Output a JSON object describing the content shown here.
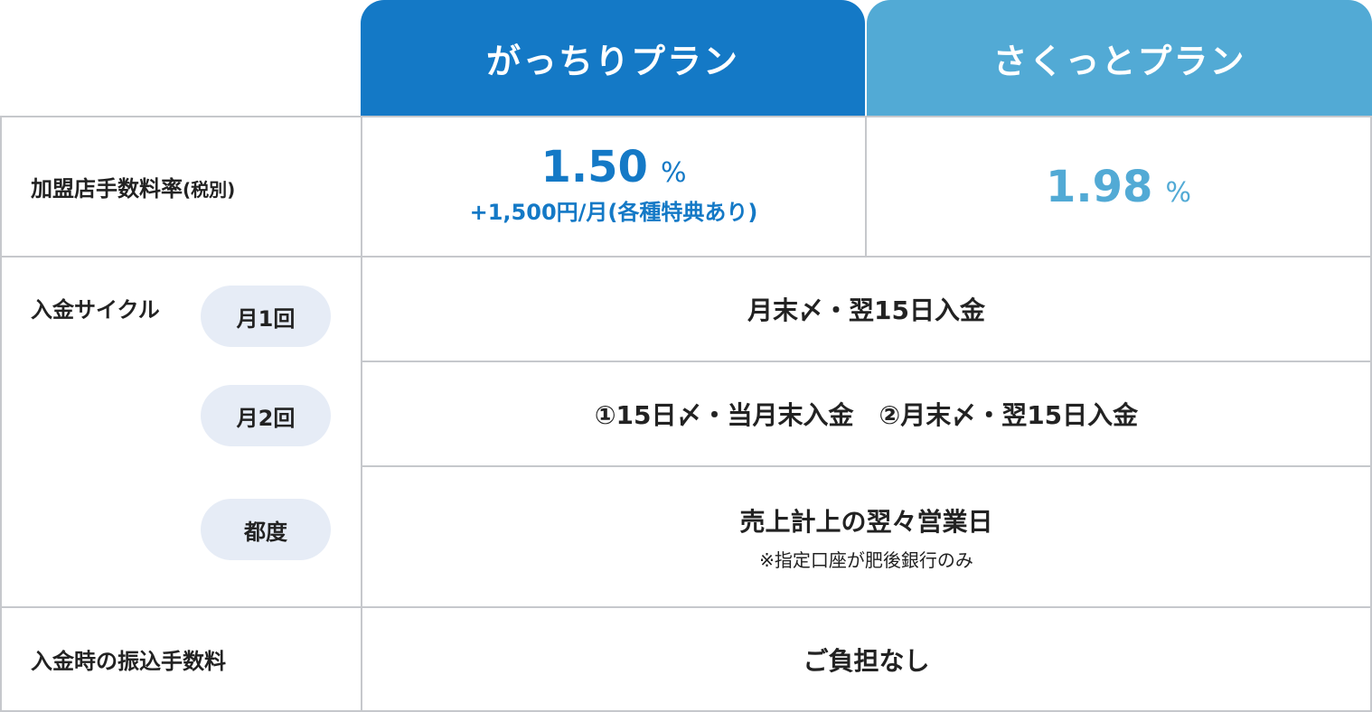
{
  "colors": {
    "primary": "#1479c6",
    "secondary": "#52aad5",
    "border": "#c6c8cc",
    "pill": "#e6ecf6"
  },
  "plans": [
    {
      "name": "がっちりプラン",
      "rate": "1.50",
      "unit": "%",
      "note": "+1,500円/月(各種特典あり)"
    },
    {
      "name": "さくっとプラン",
      "rate": "1.98",
      "unit": "%"
    }
  ],
  "rows": {
    "fee_label": "加盟店手数料率",
    "fee_suffix": "(税別)",
    "cycle_label": "入金サイクル",
    "cycles": [
      {
        "tag": "月1回",
        "value": "月末〆・翌15日入金"
      },
      {
        "tag": "月2回",
        "value": "①15日〆・当月末入金　②月末〆・翌15日入金"
      },
      {
        "tag": "都度",
        "value": "売上計上の翌々営業日",
        "note": "※指定口座が肥後銀行のみ"
      }
    ],
    "transfer_label": "入金時の振込手数料",
    "transfer_value": "ご負担なし"
  }
}
